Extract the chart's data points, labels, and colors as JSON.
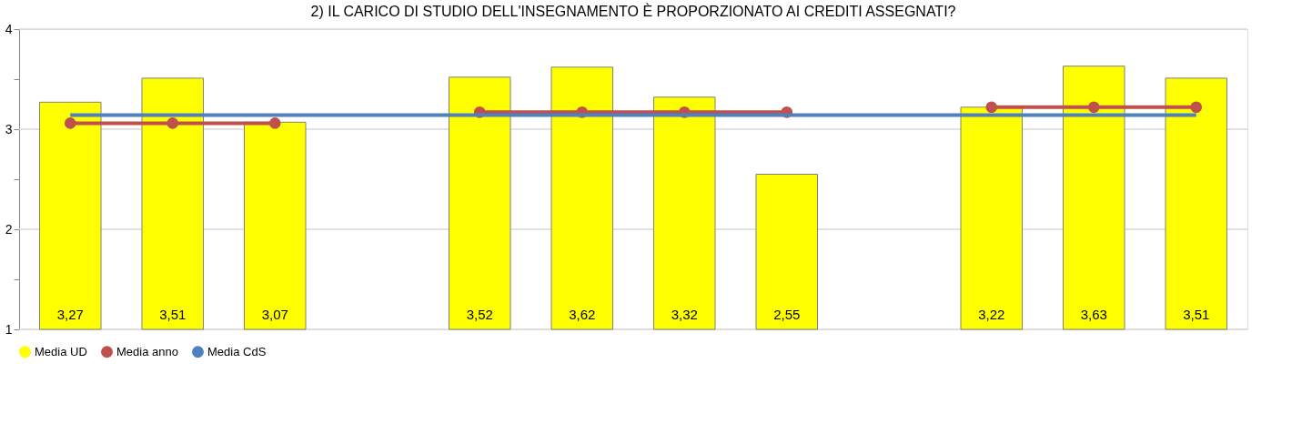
{
  "chart_data": {
    "type": "bar",
    "title": "2) IL CARICO DI STUDIO DELL'INSEGNAMENTO È PROPORZIONATO AI CREDITI ASSEGNATI?",
    "categories": [
      null,
      null,
      null,
      null,
      null,
      null,
      null,
      null,
      null,
      null,
      null,
      null
    ],
    "series": [
      {
        "name": "Media UD",
        "color": "#ffff00",
        "values": [
          3.27,
          3.51,
          3.07,
          null,
          3.52,
          3.62,
          3.32,
          2.55,
          null,
          3.22,
          3.63,
          3.51
        ],
        "value_labels": [
          "3,27",
          "3,51",
          "3,07",
          null,
          "3,52",
          "3,62",
          "3,32",
          "2,55",
          null,
          "3,22",
          "3,63",
          "3,51"
        ]
      },
      {
        "name": "Media anno",
        "type": "line",
        "marker": "circle",
        "color": "#c0504d",
        "values": [
          3.06,
          3.06,
          3.06,
          null,
          3.17,
          3.17,
          3.17,
          3.17,
          null,
          3.22,
          3.22,
          3.22
        ]
      },
      {
        "name": "Media CdS",
        "type": "line",
        "marker": "none",
        "color": "#4f81bd",
        "values": [
          3.14,
          3.14,
          3.14,
          3.14,
          3.14,
          3.14,
          3.14,
          3.14,
          3.14,
          3.14,
          3.14,
          3.14
        ]
      }
    ],
    "ylim": [
      1,
      4
    ],
    "yticks": [
      1,
      {
        "value": 1.5,
        "label": null
      },
      2,
      {
        "value": 2.5,
        "label": null
      },
      3,
      {
        "value": 3.5,
        "label": null
      },
      4
    ],
    "grid": "y",
    "legend": "bottom",
    "tick_labels": "y"
  }
}
